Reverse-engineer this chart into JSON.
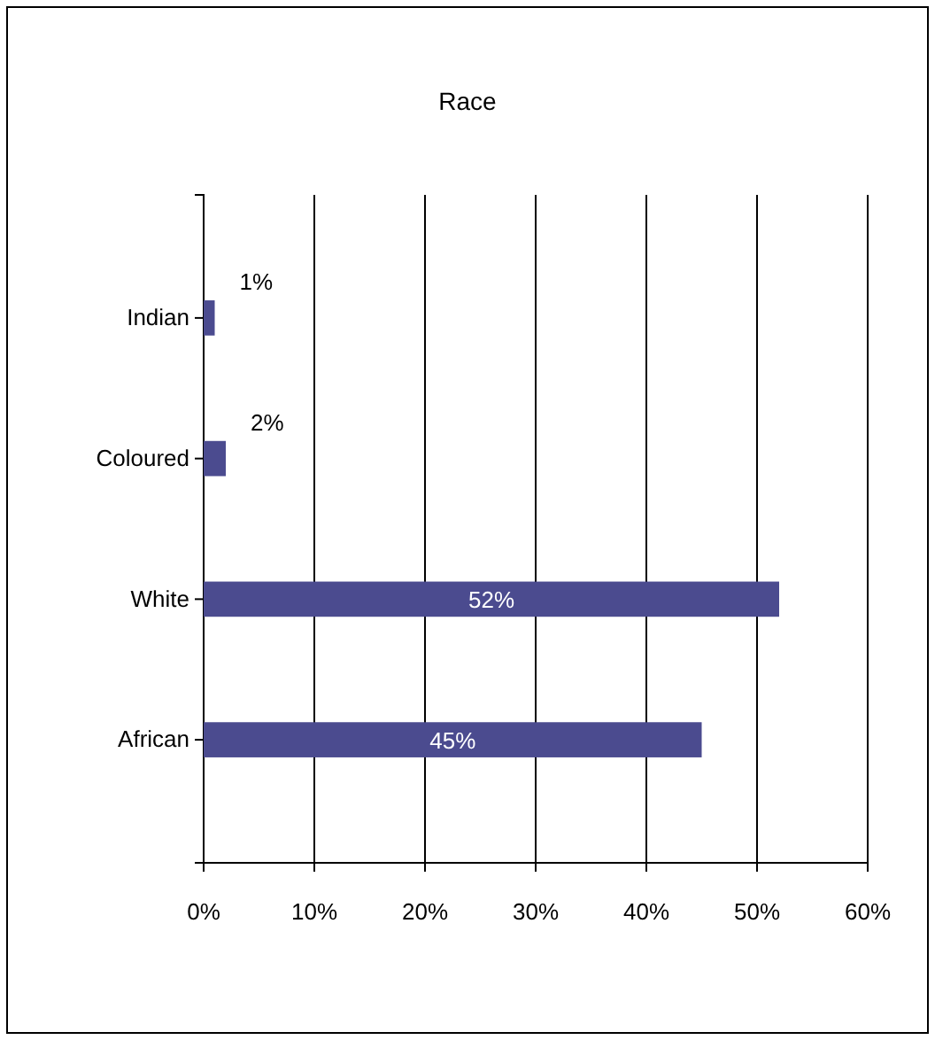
{
  "chart_data": {
    "type": "bar",
    "orientation": "horizontal",
    "title": "Race",
    "categories": [
      "Indian",
      "Coloured",
      "White",
      "African"
    ],
    "values": [
      1,
      2,
      52,
      45
    ],
    "value_labels": [
      "1%",
      "2%",
      "52%",
      "45%"
    ],
    "color": "#4b4b8f",
    "xlim": [
      0,
      60
    ],
    "xticks": [
      {
        "value": 0,
        "label": "0%"
      },
      {
        "value": 10,
        "label": "10%"
      },
      {
        "value": 20,
        "label": "20%"
      },
      {
        "value": 30,
        "label": "30%"
      },
      {
        "value": 40,
        "label": "40%"
      },
      {
        "value": 50,
        "label": "50%"
      },
      {
        "value": 60,
        "label": "60%"
      }
    ],
    "grid": "x"
  }
}
